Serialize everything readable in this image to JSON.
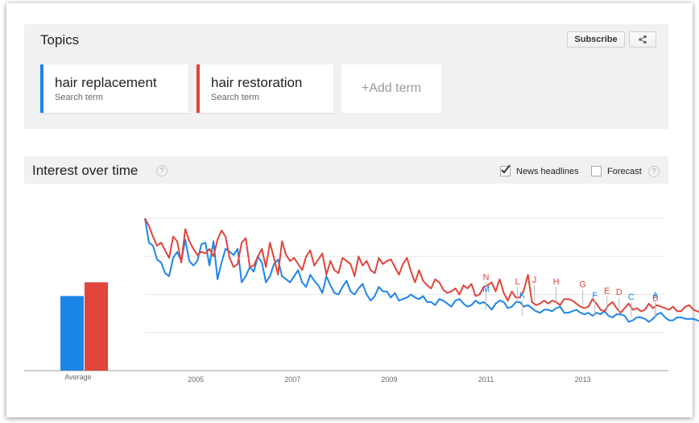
{
  "topics": {
    "title": "Topics",
    "subscribe_label": "Subscribe",
    "share_icon": "share-icon",
    "terms": [
      {
        "name": "hair replacement",
        "sub": "Search term",
        "color": "#1c85e8"
      },
      {
        "name": "hair restoration",
        "sub": "Search term",
        "color": "#e0443a"
      }
    ],
    "add_term_label": "+Add term"
  },
  "interest": {
    "title": "Interest over time",
    "help": "?",
    "news_headlines_label": "News headlines",
    "news_headlines_checked": true,
    "forecast_label": "Forecast",
    "forecast_checked": false
  },
  "chart_data": {
    "type": "line",
    "average_label": "Average",
    "average_values": [
      49,
      58
    ],
    "x_ticks": [
      "2005",
      "2007",
      "2009",
      "2011",
      "2013"
    ],
    "x_range": [
      2004.0,
      2014.72
    ],
    "y_range": [
      0,
      100
    ],
    "series": [
      {
        "name": "hair replacement",
        "color": "#1c85e8",
        "start": 2004.0,
        "step_months": 1,
        "values": [
          100,
          84,
          82,
          73,
          71,
          64,
          62,
          74,
          78,
          72,
          86,
          72,
          69,
          72,
          83,
          84,
          69,
          85,
          60,
          71,
          80,
          78,
          76,
          80,
          58,
          62,
          68,
          65,
          75,
          71,
          58,
          62,
          70,
          73,
          62,
          60,
          58,
          62,
          66,
          58,
          55,
          63,
          59,
          56,
          51,
          62,
          56,
          51,
          50,
          55,
          59,
          52,
          50,
          54,
          57,
          50,
          46,
          49,
          55,
          52,
          52,
          48,
          51,
          46,
          47,
          48,
          50,
          48,
          47,
          49,
          45,
          45,
          43,
          47,
          46,
          44,
          42,
          46,
          47,
          44,
          42,
          43,
          46,
          44,
          45,
          43,
          40,
          44,
          46,
          45,
          41,
          42,
          45,
          45,
          42,
          43,
          41,
          39,
          38,
          40,
          40,
          39,
          41,
          42,
          38,
          38,
          39,
          40,
          38,
          37,
          38,
          36,
          38,
          37,
          39,
          36,
          35,
          37,
          37,
          36,
          32,
          33,
          35,
          35,
          34,
          32,
          34,
          37,
          38,
          35,
          33,
          33,
          35,
          35,
          34,
          34,
          34,
          33,
          32,
          34,
          36,
          33,
          31,
          32,
          34,
          34,
          32,
          33,
          32,
          31,
          30,
          31,
          33,
          31,
          31,
          30,
          32,
          31,
          31,
          29,
          32,
          30,
          28
        ]
      },
      {
        "name": "hair restoration",
        "color": "#e0443a",
        "start": 2004.0,
        "step_months": 1,
        "values": [
          100,
          95,
          88,
          82,
          84,
          79,
          74,
          88,
          85,
          71,
          93,
          85,
          80,
          76,
          78,
          77,
          80,
          75,
          86,
          92,
          88,
          74,
          68,
          70,
          84,
          87,
          68,
          69,
          75,
          80,
          68,
          84,
          74,
          63,
          85,
          76,
          72,
          74,
          70,
          66,
          75,
          79,
          69,
          73,
          77,
          63,
          72,
          66,
          64,
          74,
          72,
          70,
          62,
          75,
          69,
          72,
          66,
          64,
          74,
          70,
          72,
          73,
          68,
          63,
          70,
          74,
          65,
          58,
          66,
          59,
          56,
          54,
          60,
          58,
          53,
          51,
          52,
          54,
          50,
          56,
          54,
          57,
          49,
          50,
          55,
          56,
          58,
          52,
          60,
          51,
          46,
          52,
          48,
          48,
          53,
          63,
          45,
          43,
          44,
          46,
          44,
          46,
          45,
          43,
          47,
          47,
          46,
          44,
          42,
          41,
          42,
          47,
          44,
          40,
          39,
          43,
          45,
          41,
          38,
          41,
          44,
          40,
          41,
          39,
          40,
          44,
          41,
          43,
          42,
          41,
          40,
          42,
          39,
          39,
          42,
          43,
          40,
          39,
          38,
          40,
          39,
          37,
          37,
          37,
          36,
          38,
          36,
          35,
          36,
          35,
          34,
          34,
          36,
          35,
          35,
          34,
          33,
          34,
          32,
          33,
          34,
          33,
          0
        ]
      }
    ],
    "news_markers": [
      {
        "letter": "N",
        "x": 2011.05,
        "y": 48,
        "color": "#e0443a"
      },
      {
        "letter": "M",
        "x": 2011.05,
        "y": 40,
        "color": "#1c85e8"
      },
      {
        "letter": "L",
        "x": 2011.7,
        "y": 45,
        "color": "#e0443a"
      },
      {
        "letter": "K",
        "x": 2011.8,
        "y": 36,
        "color": "#1c85e8"
      },
      {
        "letter": "J",
        "x": 2012.05,
        "y": 46,
        "color": "#e0443a"
      },
      {
        "letter": "H",
        "x": 2012.5,
        "y": 45,
        "color": "#e0443a"
      },
      {
        "letter": "G",
        "x": 2013.05,
        "y": 43,
        "color": "#e0443a"
      },
      {
        "letter": "F",
        "x": 2013.3,
        "y": 36,
        "color": "#1c85e8"
      },
      {
        "letter": "E",
        "x": 2013.55,
        "y": 39,
        "color": "#e0443a"
      },
      {
        "letter": "D",
        "x": 2013.8,
        "y": 38,
        "color": "#e0443a"
      },
      {
        "letter": "C",
        "x": 2014.05,
        "y": 35,
        "color": "#1c85e8"
      },
      {
        "letter": "B",
        "x": 2014.55,
        "y": 34,
        "color": "#e0443a"
      },
      {
        "letter": "A",
        "x": 2014.55,
        "y": 36,
        "color": "#1c85e8"
      }
    ]
  }
}
